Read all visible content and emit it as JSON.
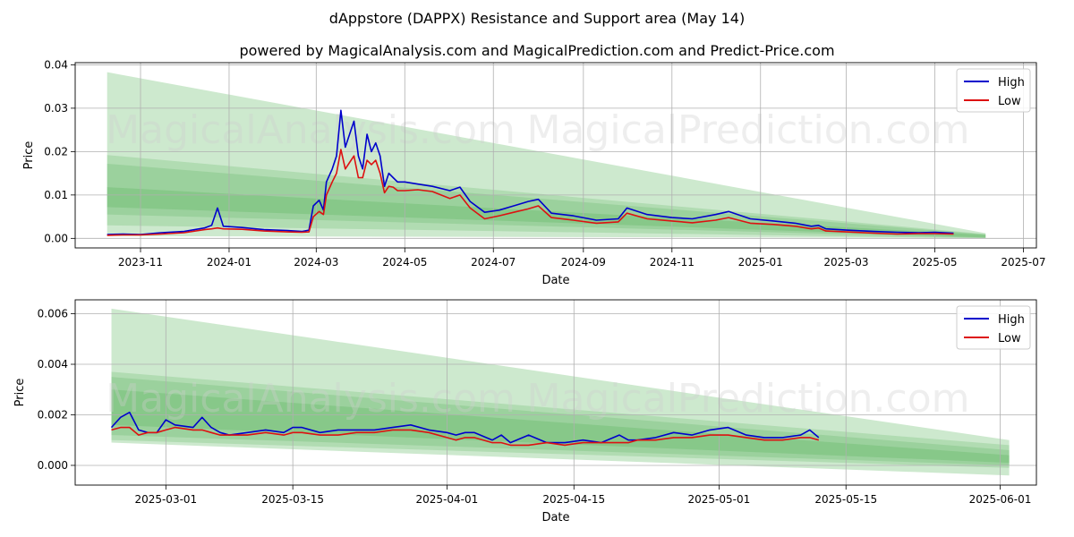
{
  "title": "dAppstore (DAPPX) Resistance and Support area (May 14)",
  "subtitle": "powered by MagicalAnalysis.com and MagicalPrediction.com and Predict-Price.com",
  "watermarks": [
    "MagicalAnalysis.com",
    "MagicalPrediction.com"
  ],
  "colors": {
    "high": "#0000cc",
    "low": "#dd1111",
    "band": "#4caf50",
    "grid": "#b0b0b0"
  },
  "chart_data": [
    {
      "type": "line",
      "xlabel": "Date",
      "ylabel": "Price",
      "xlim": [
        "2023-09-17",
        "2025-07-10"
      ],
      "ylim": [
        -0.0022,
        0.0405
      ],
      "x_ticks": [
        "2023-11",
        "2024-01",
        "2024-03",
        "2024-05",
        "2024-07",
        "2024-09",
        "2024-11",
        "2025-01",
        "2025-03",
        "2025-05",
        "2025-07"
      ],
      "y_ticks": [
        "0.00",
        "0.01",
        "0.02",
        "0.03",
        "0.04"
      ],
      "y_tick_values": [
        0,
        0.01,
        0.02,
        0.03,
        0.04
      ],
      "legend": {
        "placement": "top-right",
        "entries": [
          "High",
          "Low"
        ]
      },
      "grid": true,
      "bands": [
        {
          "start": "2023-10-09",
          "end": "2025-06-05",
          "top0": 0.0383,
          "top1": 0.0012,
          "bot0": 0.0005,
          "bot1": 0.0001,
          "opacity": 0.28
        },
        {
          "start": "2023-10-09",
          "end": "2025-06-05",
          "top0": 0.0192,
          "top1": 0.001,
          "bot0": 0.003,
          "bot1": 0.0,
          "opacity": 0.22
        },
        {
          "start": "2023-10-09",
          "end": "2025-06-05",
          "top0": 0.0172,
          "top1": 0.0009,
          "bot0": 0.0055,
          "bot1": 0.0001,
          "opacity": 0.22
        },
        {
          "start": "2023-10-09",
          "end": "2025-06-05",
          "top0": 0.0118,
          "top1": 0.0008,
          "bot0": 0.0072,
          "bot1": 0.0002,
          "opacity": 0.25
        }
      ],
      "series": [
        {
          "name": "High",
          "x": [
            "2023-10-09",
            "2023-10-20",
            "2023-11-01",
            "2023-11-15",
            "2023-12-01",
            "2023-12-15",
            "2023-12-20",
            "2023-12-24",
            "2023-12-28",
            "2024-01-10",
            "2024-01-25",
            "2024-02-10",
            "2024-02-20",
            "2024-02-25",
            "2024-02-28",
            "2024-03-03",
            "2024-03-06",
            "2024-03-08",
            "2024-03-12",
            "2024-03-15",
            "2024-03-18",
            "2024-03-21",
            "2024-03-24",
            "2024-03-27",
            "2024-03-30",
            "2024-04-02",
            "2024-04-05",
            "2024-04-08",
            "2024-04-11",
            "2024-04-14",
            "2024-04-17",
            "2024-04-20",
            "2024-04-23",
            "2024-04-26",
            "2024-05-01",
            "2024-05-10",
            "2024-05-20",
            "2024-06-01",
            "2024-06-08",
            "2024-06-15",
            "2024-06-25",
            "2024-07-05",
            "2024-07-15",
            "2024-07-25",
            "2024-08-01",
            "2024-08-10",
            "2024-08-25",
            "2024-09-10",
            "2024-09-25",
            "2024-10-01",
            "2024-10-15",
            "2024-11-01",
            "2024-11-15",
            "2024-12-01",
            "2024-12-10",
            "2024-12-25",
            "2025-01-10",
            "2025-01-25",
            "2025-02-05",
            "2025-02-10",
            "2025-02-15",
            "2025-03-01",
            "2025-03-20",
            "2025-04-05",
            "2025-04-20",
            "2025-05-01",
            "2025-05-14"
          ],
          "values": [
            0.0009,
            0.001,
            0.0009,
            0.0013,
            0.0016,
            0.0024,
            0.003,
            0.007,
            0.0028,
            0.0025,
            0.002,
            0.0018,
            0.0016,
            0.0019,
            0.0075,
            0.0088,
            0.0065,
            0.013,
            0.016,
            0.019,
            0.0295,
            0.021,
            0.024,
            0.027,
            0.019,
            0.016,
            0.024,
            0.02,
            0.022,
            0.019,
            0.012,
            0.015,
            0.014,
            0.013,
            0.013,
            0.0125,
            0.012,
            0.011,
            0.0118,
            0.0085,
            0.006,
            0.0065,
            0.0075,
            0.0085,
            0.009,
            0.0058,
            0.0052,
            0.0042,
            0.0045,
            0.007,
            0.0055,
            0.0048,
            0.0045,
            0.0055,
            0.0062,
            0.0045,
            0.004,
            0.0035,
            0.0028,
            0.003,
            0.0022,
            0.0019,
            0.0016,
            0.0014,
            0.0013,
            0.0014,
            0.0012
          ]
        },
        {
          "name": "Low",
          "x": [
            "2023-10-09",
            "2023-10-20",
            "2023-11-01",
            "2023-11-15",
            "2023-12-01",
            "2023-12-15",
            "2023-12-20",
            "2023-12-24",
            "2023-12-28",
            "2024-01-10",
            "2024-01-25",
            "2024-02-10",
            "2024-02-20",
            "2024-02-25",
            "2024-02-28",
            "2024-03-03",
            "2024-03-06",
            "2024-03-08",
            "2024-03-12",
            "2024-03-15",
            "2024-03-18",
            "2024-03-21",
            "2024-03-24",
            "2024-03-27",
            "2024-03-30",
            "2024-04-02",
            "2024-04-05",
            "2024-04-08",
            "2024-04-11",
            "2024-04-14",
            "2024-04-17",
            "2024-04-20",
            "2024-04-23",
            "2024-04-26",
            "2024-05-01",
            "2024-05-10",
            "2024-05-20",
            "2024-06-01",
            "2024-06-08",
            "2024-06-15",
            "2024-06-25",
            "2024-07-05",
            "2024-07-15",
            "2024-07-25",
            "2024-08-01",
            "2024-08-10",
            "2024-08-25",
            "2024-09-10",
            "2024-09-25",
            "2024-10-01",
            "2024-10-15",
            "2024-11-01",
            "2024-11-15",
            "2024-12-01",
            "2024-12-10",
            "2024-12-25",
            "2025-01-10",
            "2025-01-25",
            "2025-02-05",
            "2025-02-10",
            "2025-02-15",
            "2025-03-01",
            "2025-03-20",
            "2025-04-05",
            "2025-04-20",
            "2025-05-01",
            "2025-05-14"
          ],
          "values": [
            0.0007,
            0.0008,
            0.0008,
            0.001,
            0.0013,
            0.002,
            0.0022,
            0.0024,
            0.0022,
            0.0021,
            0.0017,
            0.0015,
            0.0014,
            0.0015,
            0.005,
            0.0062,
            0.0055,
            0.01,
            0.013,
            0.015,
            0.0205,
            0.016,
            0.0175,
            0.019,
            0.014,
            0.014,
            0.018,
            0.017,
            0.018,
            0.015,
            0.0105,
            0.012,
            0.0118,
            0.011,
            0.011,
            0.0112,
            0.0108,
            0.0092,
            0.01,
            0.007,
            0.0045,
            0.0052,
            0.006,
            0.0068,
            0.0075,
            0.0048,
            0.0042,
            0.0035,
            0.0038,
            0.0058,
            0.0045,
            0.004,
            0.0036,
            0.0042,
            0.0048,
            0.0035,
            0.0032,
            0.0028,
            0.0022,
            0.0024,
            0.0017,
            0.0015,
            0.0012,
            0.001,
            0.0011,
            0.0011,
            0.001
          ]
        }
      ]
    },
    {
      "type": "line",
      "xlabel": "Date",
      "ylabel": "Price",
      "xlim": [
        "2025-02-19",
        "2025-06-05"
      ],
      "ylim": [
        -0.00078,
        0.00655
      ],
      "x_ticks": [
        "2025-03-01",
        "2025-03-15",
        "2025-04-01",
        "2025-04-15",
        "2025-05-01",
        "2025-05-15",
        "2025-06-01"
      ],
      "y_ticks": [
        "0.000",
        "0.002",
        "0.004",
        "0.006"
      ],
      "y_tick_values": [
        0,
        0.002,
        0.004,
        0.006
      ],
      "legend": {
        "placement": "top-right",
        "entries": [
          "High",
          "Low"
        ]
      },
      "grid": true,
      "bands": [
        {
          "start": "2025-02-23",
          "end": "2025-06-02",
          "top0": 0.0062,
          "top1": 0.001,
          "bot0": 0.0009,
          "bot1": -0.0004,
          "opacity": 0.28
        },
        {
          "start": "2025-02-23",
          "end": "2025-06-02",
          "top0": 0.0037,
          "top1": 0.0008,
          "bot0": 0.001,
          "bot1": -0.0001,
          "opacity": 0.22
        },
        {
          "start": "2025-02-23",
          "end": "2025-06-02",
          "top0": 0.0035,
          "top1": 0.0006,
          "bot0": 0.0012,
          "bot1": 0.0,
          "opacity": 0.22
        },
        {
          "start": "2025-02-23",
          "end": "2025-06-02",
          "top0": 0.003,
          "top1": 0.0004,
          "bot0": 0.0016,
          "bot1": 0.0001,
          "opacity": 0.25
        }
      ],
      "series": [
        {
          "name": "High",
          "x": [
            "2025-02-23",
            "2025-02-24",
            "2025-02-25",
            "2025-02-26",
            "2025-02-27",
            "2025-02-28",
            "2025-03-01",
            "2025-03-02",
            "2025-03-04",
            "2025-03-05",
            "2025-03-06",
            "2025-03-07",
            "2025-03-08",
            "2025-03-10",
            "2025-03-12",
            "2025-03-14",
            "2025-03-15",
            "2025-03-16",
            "2025-03-18",
            "2025-03-20",
            "2025-03-22",
            "2025-03-24",
            "2025-03-26",
            "2025-03-28",
            "2025-03-30",
            "2025-04-01",
            "2025-04-02",
            "2025-04-03",
            "2025-04-04",
            "2025-04-06",
            "2025-04-07",
            "2025-04-08",
            "2025-04-10",
            "2025-04-12",
            "2025-04-14",
            "2025-04-16",
            "2025-04-18",
            "2025-04-20",
            "2025-04-21",
            "2025-04-22",
            "2025-04-24",
            "2025-04-26",
            "2025-04-28",
            "2025-04-30",
            "2025-05-02",
            "2025-05-04",
            "2025-05-06",
            "2025-05-08",
            "2025-05-10",
            "2025-05-11",
            "2025-05-12"
          ],
          "values": [
            0.0015,
            0.0019,
            0.0021,
            0.0014,
            0.0013,
            0.0013,
            0.0018,
            0.0016,
            0.0015,
            0.0019,
            0.0015,
            0.0013,
            0.0012,
            0.0013,
            0.0014,
            0.0013,
            0.0015,
            0.0015,
            0.0013,
            0.0014,
            0.0014,
            0.0014,
            0.0015,
            0.0016,
            0.0014,
            0.0013,
            0.0012,
            0.0013,
            0.0013,
            0.001,
            0.0012,
            0.0009,
            0.0012,
            0.0009,
            0.0009,
            0.001,
            0.0009,
            0.0012,
            0.001,
            0.001,
            0.0011,
            0.0013,
            0.0012,
            0.0014,
            0.0015,
            0.0012,
            0.0011,
            0.0011,
            0.0012,
            0.0014,
            0.0011
          ]
        },
        {
          "name": "Low",
          "x": [
            "2025-02-23",
            "2025-02-24",
            "2025-02-25",
            "2025-02-26",
            "2025-02-27",
            "2025-02-28",
            "2025-03-01",
            "2025-03-02",
            "2025-03-04",
            "2025-03-05",
            "2025-03-06",
            "2025-03-07",
            "2025-03-08",
            "2025-03-10",
            "2025-03-12",
            "2025-03-14",
            "2025-03-15",
            "2025-03-16",
            "2025-03-18",
            "2025-03-20",
            "2025-03-22",
            "2025-03-24",
            "2025-03-26",
            "2025-03-28",
            "2025-03-30",
            "2025-04-01",
            "2025-04-02",
            "2025-04-03",
            "2025-04-04",
            "2025-04-06",
            "2025-04-07",
            "2025-04-08",
            "2025-04-10",
            "2025-04-12",
            "2025-04-14",
            "2025-04-16",
            "2025-04-18",
            "2025-04-20",
            "2025-04-21",
            "2025-04-22",
            "2025-04-24",
            "2025-04-26",
            "2025-04-28",
            "2025-04-30",
            "2025-05-02",
            "2025-05-04",
            "2025-05-06",
            "2025-05-08",
            "2025-05-10",
            "2025-05-11",
            "2025-05-12"
          ],
          "values": [
            0.0014,
            0.0015,
            0.0015,
            0.0012,
            0.0013,
            0.0013,
            0.0014,
            0.0015,
            0.0014,
            0.0014,
            0.0013,
            0.0012,
            0.0012,
            0.0012,
            0.0013,
            0.0012,
            0.0013,
            0.0013,
            0.0012,
            0.0012,
            0.0013,
            0.0013,
            0.0014,
            0.0014,
            0.0013,
            0.0011,
            0.001,
            0.0011,
            0.0011,
            0.0009,
            0.0009,
            0.0008,
            0.0008,
            0.0009,
            0.0008,
            0.0009,
            0.0009,
            0.0009,
            0.0009,
            0.001,
            0.001,
            0.0011,
            0.0011,
            0.0012,
            0.0012,
            0.0011,
            0.001,
            0.001,
            0.0011,
            0.0011,
            0.001
          ]
        }
      ]
    }
  ]
}
